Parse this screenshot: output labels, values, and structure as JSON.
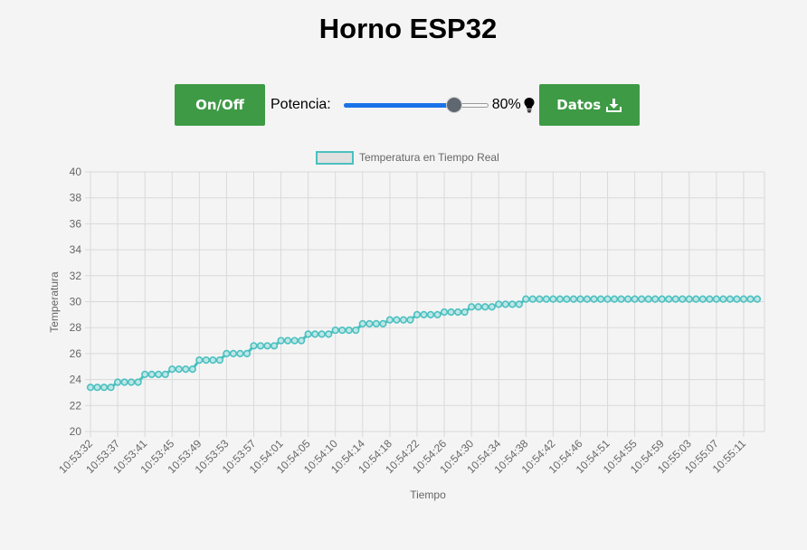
{
  "page": {
    "title": "Horno ESP32"
  },
  "controls": {
    "onoff_label": "On/Off",
    "potencia_label": "Potencia:",
    "potencia_value": 80,
    "potencia_text": "80%",
    "datos_label": "Datos",
    "button_color": "#3e9a45",
    "slider_color": "#1a73e8"
  },
  "chart_data": {
    "type": "line",
    "legend_label": "Temperatura en Tiempo Real",
    "xlabel": "Tiempo",
    "ylabel": "Temperatura",
    "ylim": [
      20,
      40
    ],
    "yticks": [
      20,
      22,
      24,
      26,
      28,
      30,
      32,
      34,
      36,
      38,
      40
    ],
    "line_color": "#4bc0c0",
    "x_tick_labels": [
      "10:53:32",
      "10:53:37",
      "10:53:41",
      "10:53:45",
      "10:53:49",
      "10:53:53",
      "10:53:57",
      "10:54:01",
      "10:54:05",
      "10:54:10",
      "10:54:14",
      "10:54:18",
      "10:54:22",
      "10:54:26",
      "10:54:30",
      "10:54:34",
      "10:54:38",
      "10:54:42",
      "10:54:46",
      "10:54:51",
      "10:54:55",
      "10:54:59",
      "10:55:03",
      "10:55:07",
      "10:55:11"
    ],
    "values": [
      23.4,
      23.4,
      23.4,
      23.4,
      23.8,
      23.8,
      23.8,
      23.8,
      24.4,
      24.4,
      24.4,
      24.4,
      24.8,
      24.8,
      24.8,
      24.8,
      25.5,
      25.5,
      25.5,
      25.5,
      26.0,
      26.0,
      26.0,
      26.0,
      26.6,
      26.6,
      26.6,
      26.6,
      27.0,
      27.0,
      27.0,
      27.0,
      27.5,
      27.5,
      27.5,
      27.5,
      27.8,
      27.8,
      27.8,
      27.8,
      28.3,
      28.3,
      28.3,
      28.3,
      28.6,
      28.6,
      28.6,
      28.6,
      29.0,
      29.0,
      29.0,
      29.0,
      29.2,
      29.2,
      29.2,
      29.2,
      29.6,
      29.6,
      29.6,
      29.6,
      29.8,
      29.8,
      29.8,
      29.8,
      30.2,
      30.2,
      30.2,
      30.2,
      30.2,
      30.2,
      30.2,
      30.2,
      30.2,
      30.2,
      30.2,
      30.2,
      30.2,
      30.2,
      30.2,
      30.2,
      30.2,
      30.2,
      30.2,
      30.2,
      30.2,
      30.2,
      30.2,
      30.2,
      30.2,
      30.2,
      30.2,
      30.2,
      30.2,
      30.2,
      30.2,
      30.2,
      30.2,
      30.2,
      30.2
    ]
  }
}
